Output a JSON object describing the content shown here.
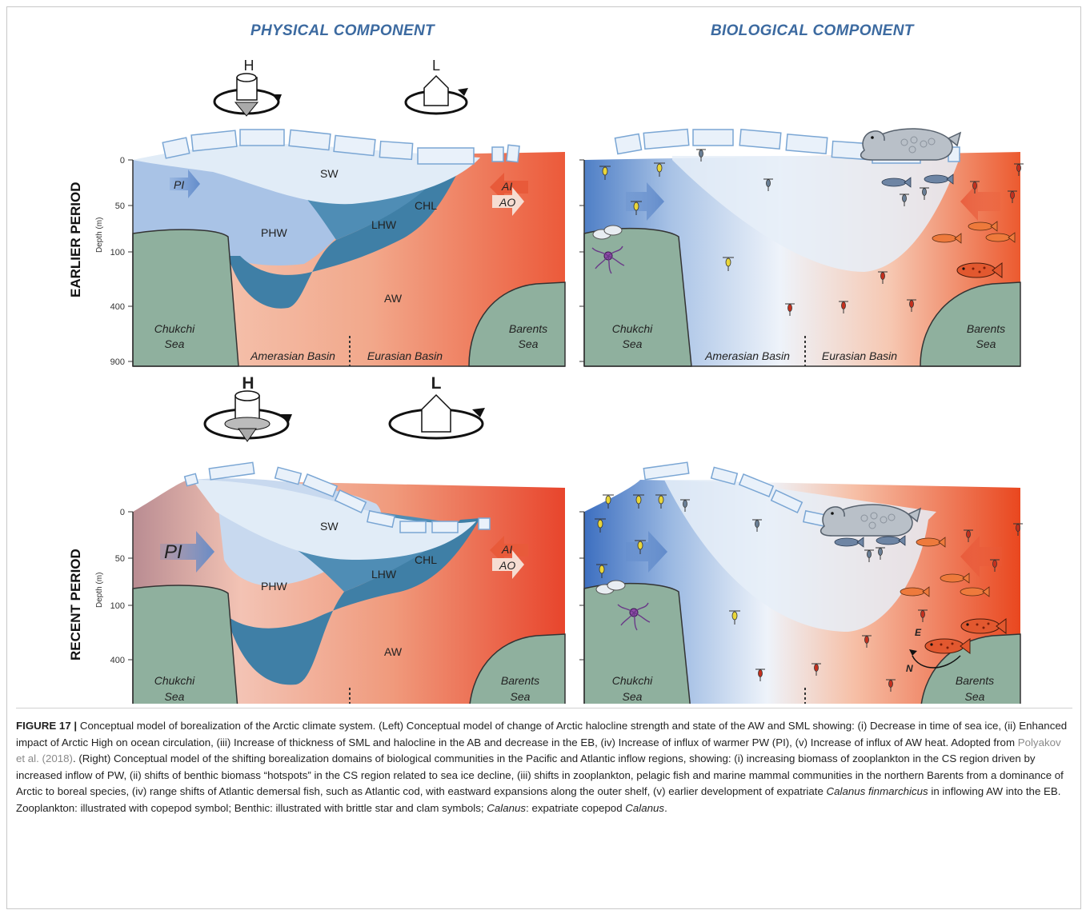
{
  "headers": {
    "physical": "PHYSICAL COMPONENT",
    "biological": "BIOLOGICAL COMPONENT"
  },
  "rows": {
    "earlier": "EARLIER PERIOD",
    "recent": "RECENT PERIOD"
  },
  "axis": {
    "ylabel": "Depth (m)",
    "ticks": [
      "0",
      "50",
      "100",
      "400",
      "900"
    ]
  },
  "pressure": {
    "high": "H",
    "low": "L"
  },
  "labels": {
    "sw": "SW",
    "phw": "PHW",
    "lhw": "LHW",
    "chl": "CHL",
    "aw": "AW",
    "pi": "PI",
    "ai": "AI",
    "ao": "AO",
    "chukchi1": "Chukchi",
    "chukchi2": "Sea",
    "barents1": "Barents",
    "barents2": "Sea",
    "amerasian": "Amerasian Basin",
    "eurasian": "Eurasian Basin",
    "e": "E",
    "n": "N"
  },
  "colors": {
    "header_blue": "#3c6aa0",
    "shelf_green": "#8fb09e",
    "atlantic_red": "#ec5a3a",
    "pacific_blue": "#6f99cf",
    "halocline_blue": "#3f7fa6",
    "surface_pale": "#dde9f6"
  },
  "caption": {
    "fig": "FIGURE 17 |",
    "p1": " Conceptual model of borealization of the Arctic climate system. (Left) Conceptual model of change of Arctic halocline strength and state of the AW and SML showing: (i) Decrease in time of sea ice, (ii) Enhanced impact of Arctic High on ocean circulation, (iii) Increase of thickness of SML and halocline in the AB and decrease in the EB, (iv) Increase of influx of warmer PW (PI), (v) Increase of influx of AW heat. Adopted from ",
    "ref": "Polyakov et al. (2018)",
    "p2": ". (Right) Conceptual model of the shifting borealization domains of biological communities in the Pacific and Atlantic inflow regions, showing: (i) increasing biomass of zooplankton in the CS region driven by increased inflow of PW, (ii) shifts of benthic biomass “hotspots” in the CS region related to sea ice decline, (iii) shifts in zooplankton, pelagic fish and marine mammal communities in the northern Barents from a dominance of Arctic to boreal species, (iv) range shifts of Atlantic demersal fish, such as Atlantic cod, with eastward expansions along the outer shelf, (v) earlier development of expatriate ",
    "calanus1": "Calanus finmarchicus",
    "p3": " in inflowing AW into the EB. Zooplankton: illustrated with copepod symbol; Benthic: illustrated with brittle star and clam symbols; ",
    "calanus2": "Calanus",
    "p4": ": expatriate copepod ",
    "calanus3": "Calanus",
    "p5": "."
  }
}
